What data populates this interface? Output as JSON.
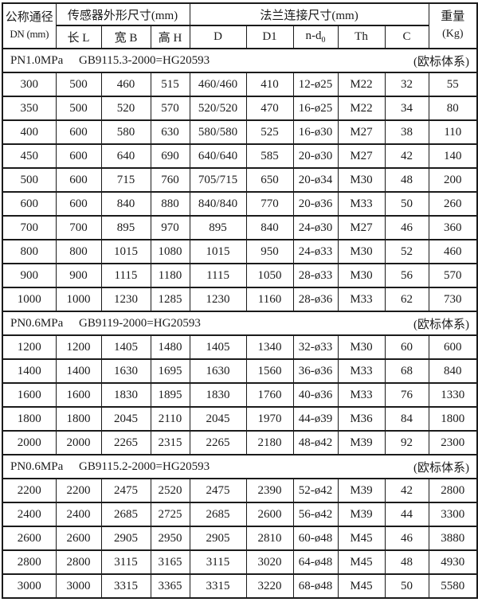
{
  "table": {
    "header": {
      "dn_title": "公称通径",
      "dn_unit": "DN (mm)",
      "sensor_group": "传感器外形尺寸(mm)",
      "col_l": "长 L",
      "col_b": "宽 B",
      "col_h": "高 H",
      "flange_group": "法兰连接尺寸(mm)",
      "col_d": "D",
      "col_d1": "D1",
      "col_nd_base": "n-d",
      "col_nd_sub": "0",
      "col_th": "Th",
      "col_c": "C",
      "weight_title": "重量",
      "weight_unit": "(Kg)"
    },
    "columns_keys": [
      "dn",
      "l",
      "b",
      "h",
      "d",
      "d1",
      "nd0",
      "th",
      "c",
      "weight"
    ],
    "sections": [
      {
        "pn": "PN1.0MPa",
        "standard": "GB9115.3-2000=HG20593",
        "note": "(欧标体系)",
        "rows": [
          [
            "300",
            "500",
            "460",
            "515",
            "460/460",
            "410",
            "12-ø25",
            "M22",
            "32",
            "55"
          ],
          [
            "350",
            "500",
            "520",
            "570",
            "520/520",
            "470",
            "16-ø25",
            "M22",
            "34",
            "80"
          ],
          [
            "400",
            "600",
            "580",
            "630",
            "580/580",
            "525",
            "16-ø30",
            "M27",
            "38",
            "110"
          ],
          [
            "450",
            "600",
            "640",
            "690",
            "640/640",
            "585",
            "20-ø30",
            "M27",
            "42",
            "140"
          ],
          [
            "500",
            "600",
            "715",
            "760",
            "705/715",
            "650",
            "20-ø34",
            "M30",
            "48",
            "200"
          ],
          [
            "600",
            "600",
            "840",
            "880",
            "840/840",
            "770",
            "20-ø36",
            "M33",
            "50",
            "260"
          ],
          [
            "700",
            "700",
            "895",
            "970",
            "895",
            "840",
            "24-ø30",
            "M27",
            "46",
            "360"
          ],
          [
            "800",
            "800",
            "1015",
            "1080",
            "1015",
            "950",
            "24-ø33",
            "M30",
            "52",
            "460"
          ],
          [
            "900",
            "900",
            "1115",
            "1180",
            "1115",
            "1050",
            "28-ø33",
            "M30",
            "56",
            "570"
          ],
          [
            "1000",
            "1000",
            "1230",
            "1285",
            "1230",
            "1160",
            "28-ø36",
            "M33",
            "62",
            "730"
          ]
        ]
      },
      {
        "pn": "PN0.6MPa",
        "standard": "GB9119-2000=HG20593",
        "note": "(欧标体系)",
        "rows": [
          [
            "1200",
            "1200",
            "1405",
            "1480",
            "1405",
            "1340",
            "32-ø33",
            "M30",
            "60",
            "600"
          ],
          [
            "1400",
            "1400",
            "1630",
            "1695",
            "1630",
            "1560",
            "36-ø36",
            "M33",
            "68",
            "840"
          ],
          [
            "1600",
            "1600",
            "1830",
            "1895",
            "1830",
            "1760",
            "40-ø36",
            "M33",
            "76",
            "1330"
          ],
          [
            "1800",
            "1800",
            "2045",
            "2110",
            "2045",
            "1970",
            "44-ø39",
            "M36",
            "84",
            "1800"
          ],
          [
            "2000",
            "2000",
            "2265",
            "2315",
            "2265",
            "2180",
            "48-ø42",
            "M39",
            "92",
            "2300"
          ]
        ]
      },
      {
        "pn": "PN0.6MPa",
        "standard": "GB9115.2-2000=HG20593",
        "note": "(欧标体系)",
        "rows": [
          [
            "2200",
            "2200",
            "2475",
            "2520",
            "2475",
            "2390",
            "52-ø42",
            "M39",
            "42",
            "2800"
          ],
          [
            "2400",
            "2400",
            "2685",
            "2725",
            "2685",
            "2600",
            "56-ø42",
            "M39",
            "44",
            "3300"
          ],
          [
            "2600",
            "2600",
            "2905",
            "2950",
            "2905",
            "2810",
            "60-ø48",
            "M45",
            "46",
            "3880"
          ],
          [
            "2800",
            "2800",
            "3115",
            "3165",
            "3115",
            "3020",
            "64-ø48",
            "M45",
            "48",
            "4930"
          ],
          [
            "3000",
            "3000",
            "3315",
            "3365",
            "3315",
            "3220",
            "68-ø48",
            "M45",
            "50",
            "5580"
          ]
        ]
      }
    ]
  }
}
